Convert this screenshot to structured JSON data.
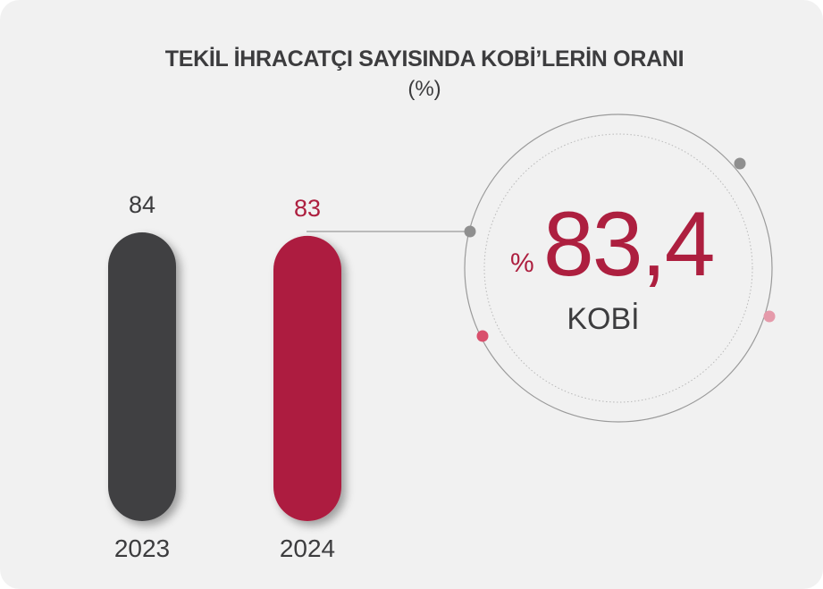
{
  "chart_data": {
    "type": "bar",
    "title": "TEKİL İHRACATÇI SAYISINDA KOBİ’LERİN ORANI",
    "subtitle": "(%)",
    "categories": [
      "2023",
      "2024"
    ],
    "values": [
      84,
      83
    ],
    "value_labels": [
      "84",
      "83"
    ],
    "bar_colors": [
      "#414143",
      "#ad1f3f"
    ],
    "ylim": [
      0,
      84
    ],
    "grid": false,
    "legend": "none"
  },
  "highlight": {
    "prefix": "%",
    "value": "83,4",
    "label": "KOBİ"
  },
  "colors": {
    "accent": "#ad1f3f",
    "dark": "#414143",
    "background": "#f1f1f1",
    "ring": "#9a9a9a",
    "dot_gray": "#8f8f8f",
    "dot_pink": "#d94f6c",
    "dot_light_pink": "#e59aaa"
  }
}
